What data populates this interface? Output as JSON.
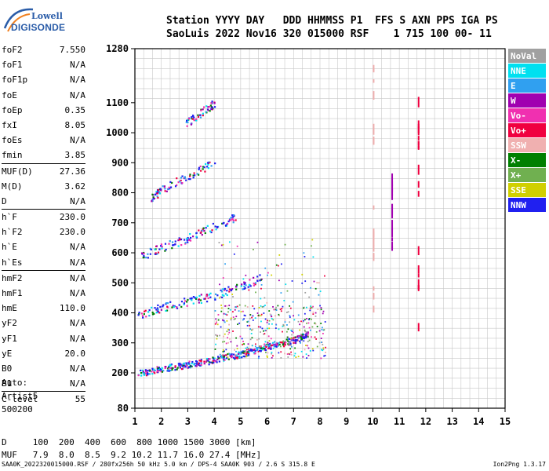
{
  "logo": {
    "line1": "Lowell",
    "line2": "DIGISONDE"
  },
  "header": {
    "labels": "Station YYYY DAY   DDD HHMMSS P1  FFS S AXN PPS IGA PS",
    "values": "SaoLuis 2022 Nov16 320 015000 RSF    1 715 100 00- 11"
  },
  "params": [
    {
      "k": "foF2",
      "v": "7.550"
    },
    {
      "k": "foF1",
      "v": "N/A"
    },
    {
      "k": "foF1p",
      "v": "N/A"
    },
    {
      "k": "foE",
      "v": "N/A"
    },
    {
      "k": "foEp",
      "v": "0.35"
    },
    {
      "k": "fxI",
      "v": "8.05"
    },
    {
      "k": "foEs",
      "v": "N/A"
    },
    {
      "k": "fmin",
      "v": "3.85"
    },
    {
      "k": "MUF(D)",
      "v": "27.36",
      "sep": true
    },
    {
      "k": "M(D)",
      "v": "3.62"
    },
    {
      "k": "D",
      "v": "N/A"
    },
    {
      "k": "h`F",
      "v": "230.0",
      "sep": true
    },
    {
      "k": "h`F2",
      "v": "230.0"
    },
    {
      "k": "h`E",
      "v": "N/A"
    },
    {
      "k": "h`Es",
      "v": "N/A"
    },
    {
      "k": "hmF2",
      "v": "N/A",
      "sep": true
    },
    {
      "k": "hmF1",
      "v": "N/A"
    },
    {
      "k": "hmE",
      "v": "110.0"
    },
    {
      "k": "yF2",
      "v": "N/A"
    },
    {
      "k": "yF1",
      "v": "N/A"
    },
    {
      "k": "yE",
      "v": "20.0"
    },
    {
      "k": "B0",
      "v": "N/A"
    },
    {
      "k": "B1",
      "v": "N/A"
    },
    {
      "k": "C-level",
      "v": "55",
      "sep": true
    }
  ],
  "auto": {
    "l1": "Auto:",
    "l2": "Artist5",
    "l3": "500200"
  },
  "bottom_table": {
    "d_row": "D     100  200  400  600  800 1000 1500 3000 [km]",
    "muf_row": "MUF   7.9  8.0  8.5  9.2 10.2 11.7 16.0 27.4 [MHz]"
  },
  "footer": {
    "left": "SAA0K_2022320015000.RSF / 280fx256h 50 kHz 5.0 km / DPS-4 SAA0K 903 / 2.6 S 315.8 E",
    "right": "Ion2Png 1.3.17"
  },
  "legend": [
    {
      "label": "NoVal",
      "color": "#a0a0a0"
    },
    {
      "label": "NNE",
      "color": "#00e0f0"
    },
    {
      "label": "E",
      "color": "#30a0f0"
    },
    {
      "label": "W",
      "color": "#a000b0"
    },
    {
      "label": "Vo-",
      "color": "#f030b0"
    },
    {
      "label": "Vo+",
      "color": "#f00040"
    },
    {
      "label": "SSW",
      "color": "#f0b0b0"
    },
    {
      "label": "X-",
      "color": "#008000"
    },
    {
      "label": "X+",
      "color": "#70b050"
    },
    {
      "label": "SSE",
      "color": "#d0d000"
    },
    {
      "label": "NNW",
      "color": "#2020f0"
    }
  ],
  "chart_data": {
    "type": "scatter",
    "xlim": [
      1,
      15
    ],
    "x_ticks": [
      1,
      2,
      3,
      4,
      5,
      6,
      7,
      8,
      9,
      10,
      11,
      12,
      13,
      14,
      15
    ],
    "ylim": [
      80,
      1280
    ],
    "y_ticks": [
      80,
      200,
      300,
      400,
      500,
      600,
      700,
      800,
      900,
      1000,
      1100,
      1280
    ],
    "grid": true,
    "traces": [
      {
        "name": "F trace",
        "x": [
          1.1,
          2.0,
          3.0,
          4.0,
          5.0,
          6.0,
          7.0,
          7.55
        ],
        "y": [
          200,
          215,
          230,
          245,
          265,
          290,
          310,
          330
        ]
      },
      {
        "name": "2F echo",
        "x": [
          1.1,
          2.0,
          3.0,
          4.0,
          5.0,
          5.8
        ],
        "y": [
          395,
          420,
          440,
          460,
          490,
          520
        ]
      },
      {
        "name": "3F echo",
        "x": [
          1.2,
          2.0,
          3.0,
          4.0,
          4.8
        ],
        "y": [
          590,
          620,
          650,
          690,
          720
        ]
      },
      {
        "name": "4F echo",
        "x": [
          1.6,
          2.0,
          3.0,
          4.0
        ],
        "y": [
          785,
          810,
          860,
          900
        ]
      },
      {
        "name": "5F echo",
        "x": [
          2.9,
          3.5,
          4.0
        ],
        "y": [
          1030,
          1070,
          1100
        ]
      }
    ],
    "interference_lines": [
      {
        "x": 10.0,
        "y": [
          400,
          1260
        ]
      },
      {
        "x": 10.7,
        "y": [
          620,
          880
        ]
      },
      {
        "x": 11.7,
        "y": [
          360,
          1120
        ]
      }
    ]
  }
}
